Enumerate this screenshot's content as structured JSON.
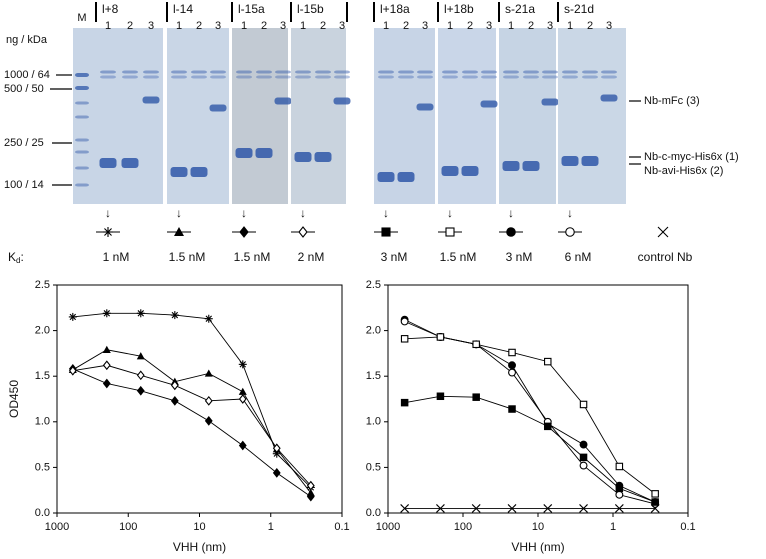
{
  "gel": {
    "marker_lane": "M",
    "size_header": "ng / kDa",
    "size_labels": [
      "1000 / 64",
      "500 / 50",
      "250 / 25",
      "100 / 14"
    ],
    "lanes": [
      "1",
      "2",
      "3"
    ],
    "groups": [
      {
        "label": "l+8",
        "kd": "1 nM",
        "marker": "asterisk"
      },
      {
        "label": "l-14",
        "kd": "1.5 nM",
        "marker": "triangle"
      },
      {
        "label": "l-15a",
        "kd": "1.5 nM",
        "marker": "diamond"
      },
      {
        "label": "l-15b",
        "kd": "2 nM",
        "marker": "diamond-open"
      },
      {
        "label": "l+18a",
        "kd": "3 nM",
        "marker": "square"
      },
      {
        "label": "l+18b",
        "kd": "1.5 nM",
        "marker": "square-open"
      },
      {
        "label": "s-21a",
        "kd": "3 nM",
        "marker": "circle"
      },
      {
        "label": "s-21d",
        "kd": "6 nM",
        "marker": "circle-open"
      }
    ],
    "control": {
      "kd": "control Nb",
      "marker": "cross"
    },
    "kd_label": {
      "main": "K",
      "sub": "d",
      "suffix": ":"
    },
    "band_labels": [
      "Nb-mFc (3)",
      "Nb-c-myc-His6x (1)",
      "Nb-avi-His6x (2)"
    ]
  },
  "chart_data": [
    {
      "type": "line",
      "xlabel": "VHH (nm)",
      "ylabel": "OD450",
      "log_x": true,
      "xlim": [
        1000,
        0.1
      ],
      "xticks": [
        1000,
        100,
        10,
        1,
        0.1
      ],
      "ylim": [
        0,
        2.5
      ],
      "yticks": [
        {
          "value": 0,
          "label": "0.0"
        },
        0.5,
        {
          "value": 1,
          "label": "1.0"
        },
        1.5,
        {
          "value": 2,
          "label": "2.0"
        },
        2.5
      ],
      "x": [
        600,
        200,
        66.7,
        22.2,
        7.41,
        2.47,
        0.823,
        0.274
      ],
      "series": [
        {
          "color": "#000000",
          "marker": "asterisk",
          "values": [
            2.15,
            2.19,
            2.19,
            2.17,
            2.13,
            1.63,
            0.65,
            0.28
          ]
        },
        {
          "color": "#000000",
          "marker": "triangle",
          "values": [
            1.57,
            1.79,
            1.72,
            1.44,
            1.53,
            1.33,
            0.7,
            0.22
          ]
        },
        {
          "color": "#000000",
          "marker": "diamond",
          "values": [
            1.58,
            1.42,
            1.34,
            1.23,
            1.01,
            0.74,
            0.44,
            0.18
          ]
        },
        {
          "color": "#000000",
          "marker": "diamond-open",
          "values": [
            1.56,
            1.62,
            1.51,
            1.4,
            1.23,
            1.25,
            0.71,
            0.3
          ]
        }
      ]
    },
    {
      "type": "line",
      "xlabel": "VHH (nm)",
      "log_x": true,
      "xlim": [
        1000,
        0.1
      ],
      "xticks": [
        1000,
        100,
        10,
        1,
        0.1
      ],
      "ylim": [
        0,
        2.5
      ],
      "yticks": [
        {
          "value": 0,
          "label": "0.0"
        },
        0.5,
        {
          "value": 1,
          "label": "1.0"
        },
        1.5,
        {
          "value": 2,
          "label": "2.0"
        },
        2.5
      ],
      "x": [
        600,
        200,
        66.7,
        22.2,
        7.41,
        2.47,
        0.823,
        0.274
      ],
      "series": [
        {
          "color": "#000000",
          "marker": "circle",
          "values": [
            2.12,
            1.93,
            1.85,
            1.62,
            0.98,
            0.75,
            0.3,
            0.12
          ]
        },
        {
          "color": "#000000",
          "marker": "circle-open",
          "values": [
            2.1,
            1.93,
            1.85,
            1.54,
            1.0,
            0.52,
            0.2,
            0.1
          ]
        },
        {
          "color": "#000000",
          "marker": "square",
          "values": [
            1.21,
            1.28,
            1.27,
            1.14,
            0.95,
            0.61,
            0.27,
            0.12
          ]
        },
        {
          "color": "#000000",
          "marker": "square-open",
          "values": [
            1.91,
            1.93,
            1.85,
            1.76,
            1.66,
            1.19,
            0.51,
            0.21
          ]
        },
        {
          "color": "#000000",
          "marker": "cross",
          "values": [
            0.05,
            0.05,
            0.05,
            0.05,
            0.05,
            0.05,
            0.05,
            0.05
          ]
        }
      ]
    }
  ]
}
